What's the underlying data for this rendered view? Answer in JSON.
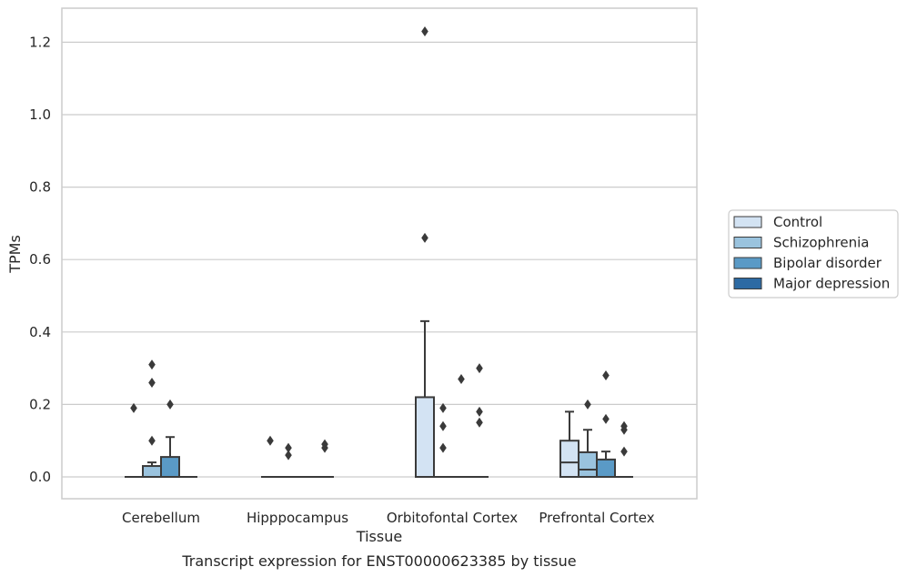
{
  "chart_data": {
    "type": "boxplot",
    "xlabel": "Tissue",
    "ylabel": "TPMs",
    "caption": "Transcript expression for ENST00000623385 by tissue",
    "ylim": [
      -0.06,
      1.29
    ],
    "yticks": [
      0.0,
      0.2,
      0.4,
      0.6,
      0.8,
      1.0,
      1.2
    ],
    "ytick_labels": [
      "0.0",
      "0.2",
      "0.4",
      "0.6",
      "0.8",
      "1.0",
      "1.2"
    ],
    "grid": "horizontal",
    "legend_position": "right",
    "categories": [
      "Cerebellum",
      "Hipppocampus",
      "Orbitofontal Cortex",
      "Prefrontal Cortex"
    ],
    "series": [
      {
        "name": "Control",
        "color": "#d3e3f3",
        "boxes": [
          {
            "q1": 0,
            "median": 0,
            "q3": 0,
            "whisker_low": 0,
            "whisker_high": 0,
            "outliers": [
              0.19
            ]
          },
          {
            "q1": 0,
            "median": 0,
            "q3": 0,
            "whisker_low": 0,
            "whisker_high": 0,
            "outliers": [
              0.1
            ]
          },
          {
            "q1": 0,
            "median": 0,
            "q3": 0.22,
            "whisker_low": 0,
            "whisker_high": 0.43,
            "outliers": [
              0.66,
              1.23
            ]
          },
          {
            "q1": 0,
            "median": 0.04,
            "q3": 0.1,
            "whisker_low": 0,
            "whisker_high": 0.18,
            "outliers": []
          }
        ]
      },
      {
        "name": "Schizophrenia",
        "color": "#9ac3de",
        "boxes": [
          {
            "q1": 0,
            "median": 0,
            "q3": 0.03,
            "whisker_low": 0,
            "whisker_high": 0.04,
            "outliers": [
              0.1,
              0.26,
              0.31
            ]
          },
          {
            "q1": 0,
            "median": 0,
            "q3": 0,
            "whisker_low": 0,
            "whisker_high": 0,
            "outliers": [
              0.06,
              0.08
            ]
          },
          {
            "q1": 0,
            "median": 0,
            "q3": 0,
            "whisker_low": 0,
            "whisker_high": 0,
            "outliers": [
              0.08,
              0.14,
              0.19
            ]
          },
          {
            "q1": 0,
            "median": 0.02,
            "q3": 0.068,
            "whisker_low": 0,
            "whisker_high": 0.13,
            "outliers": [
              0.2
            ]
          }
        ]
      },
      {
        "name": "Bipolar disorder",
        "color": "#5a9ac6",
        "boxes": [
          {
            "q1": 0,
            "median": 0,
            "q3": 0.055,
            "whisker_low": 0,
            "whisker_high": 0.11,
            "outliers": [
              0.2
            ]
          },
          {
            "q1": 0,
            "median": 0,
            "q3": 0,
            "whisker_low": 0,
            "whisker_high": 0,
            "outliers": []
          },
          {
            "q1": 0,
            "median": 0,
            "q3": 0,
            "whisker_low": 0,
            "whisker_high": 0,
            "outliers": [
              0.27
            ]
          },
          {
            "q1": 0,
            "median": 0,
            "q3": 0.048,
            "whisker_low": 0,
            "whisker_high": 0.07,
            "outliers": [
              0.16,
              0.28
            ]
          }
        ]
      },
      {
        "name": "Major depression",
        "color": "#2d6aa3",
        "boxes": [
          {
            "q1": 0,
            "median": 0,
            "q3": 0,
            "whisker_low": 0,
            "whisker_high": 0,
            "outliers": []
          },
          {
            "q1": 0,
            "median": 0,
            "q3": 0,
            "whisker_low": 0,
            "whisker_high": 0,
            "outliers": [
              0.08,
              0.09
            ]
          },
          {
            "q1": 0,
            "median": 0,
            "q3": 0,
            "whisker_low": 0,
            "whisker_high": 0,
            "outliers": [
              0.15,
              0.18,
              0.3
            ]
          },
          {
            "q1": 0,
            "median": 0,
            "q3": 0,
            "whisker_low": 0,
            "whisker_high": 0,
            "outliers": [
              0.07,
              0.13,
              0.14
            ]
          }
        ]
      }
    ]
  }
}
